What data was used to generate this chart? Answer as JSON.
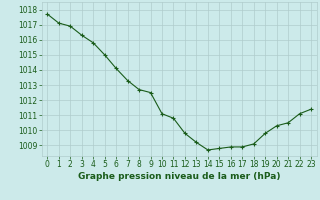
{
  "hours": [
    0,
    1,
    2,
    3,
    4,
    5,
    6,
    7,
    8,
    9,
    10,
    11,
    12,
    13,
    14,
    15,
    16,
    17,
    18,
    19,
    20,
    21,
    22,
    23
  ],
  "pressure": [
    1017.7,
    1017.1,
    1016.9,
    1016.3,
    1015.8,
    1015.0,
    1014.1,
    1013.3,
    1012.7,
    1012.5,
    1011.1,
    1010.8,
    1009.8,
    1009.2,
    1008.7,
    1008.8,
    1008.9,
    1008.9,
    1009.1,
    1009.8,
    1010.3,
    1010.5,
    1011.1,
    1011.4
  ],
  "line_color": "#1a5c1a",
  "marker": "+",
  "marker_size": 3,
  "marker_linewidth": 0.8,
  "line_width": 0.8,
  "bg_color": "#cceaea",
  "grid_color": "#b0cccc",
  "xlabel": "Graphe pression niveau de la mer (hPa)",
  "xlabel_color": "#1a5c1a",
  "xlabel_fontsize": 6.5,
  "tick_color": "#1a5c1a",
  "tick_fontsize": 5.5,
  "ylim": [
    1008.3,
    1018.5
  ],
  "yticks": [
    1009,
    1010,
    1011,
    1012,
    1013,
    1014,
    1015,
    1016,
    1017,
    1018
  ],
  "xticks": [
    0,
    1,
    2,
    3,
    4,
    5,
    6,
    7,
    8,
    9,
    10,
    11,
    12,
    13,
    14,
    15,
    16,
    17,
    18,
    19,
    20,
    21,
    22,
    23
  ],
  "xlim": [
    -0.5,
    23.5
  ]
}
